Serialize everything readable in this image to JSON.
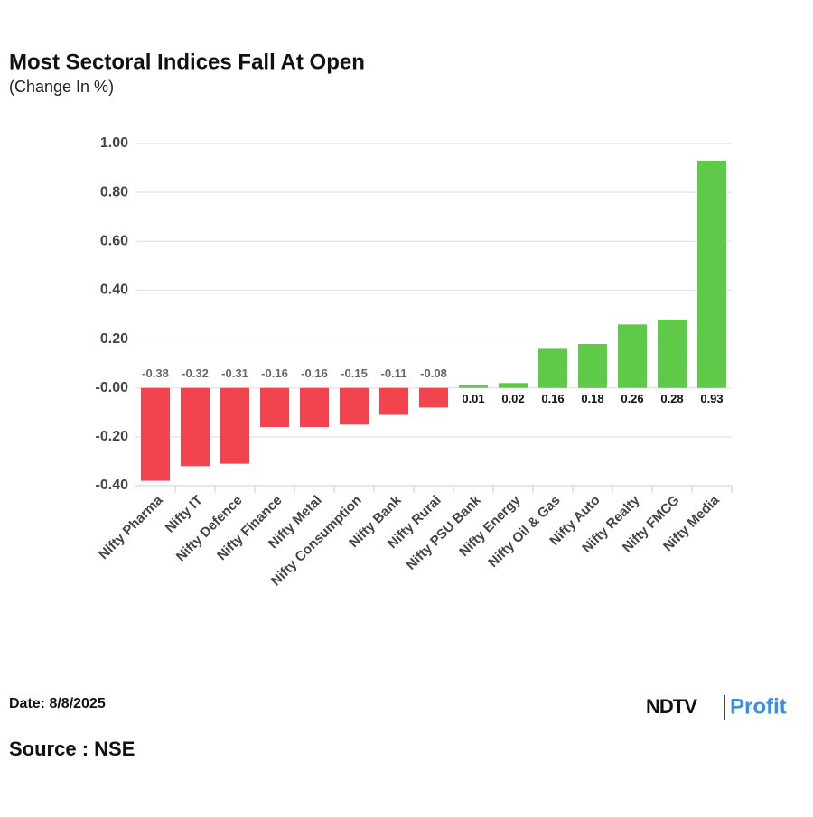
{
  "chart_data": {
    "type": "bar",
    "title": "Most Sectoral Indices Fall At Open",
    "subtitle": "(Change In %)",
    "categories": [
      "Nifty Pharma",
      "Nifty IT",
      "Nifty Defence",
      "Nifty Finance",
      "Nifty Metal",
      "Nifty Consumption",
      "Nifty Bank",
      "Nifty Rural",
      "Nifty PSU Bank",
      "Nifty Energy",
      "Nifty Oil & Gas",
      "Nifty Auto",
      "Nifty Realty",
      "Nifty FMCG",
      "Nifty Media"
    ],
    "values": [
      -0.38,
      -0.32,
      -0.31,
      -0.16,
      -0.16,
      -0.15,
      -0.11,
      -0.08,
      0.01,
      0.02,
      0.16,
      0.18,
      0.26,
      0.28,
      0.93
    ],
    "colors": {
      "negative": "#f2444f",
      "positive": "#5fca47"
    },
    "ylim": [
      -0.4,
      1.0
    ],
    "yticks": [
      {
        "value": -0.4,
        "label": "-0.40"
      },
      {
        "value": -0.2,
        "label": "-0.20"
      },
      {
        "value": 0,
        "label": "-0.00"
      },
      {
        "value": 0.2,
        "label": "0.20"
      },
      {
        "value": 0.4,
        "label": "0.40"
      },
      {
        "value": 0.6,
        "label": "0.60"
      },
      {
        "value": 0.8,
        "label": "0.80"
      },
      {
        "value": 1.0,
        "label": "1.00"
      }
    ],
    "grid": true
  },
  "footer": {
    "date": "Date: 8/8/2025",
    "source": "Source : NSE",
    "logo": {
      "brand": "NDTV",
      "product": "Profit"
    }
  }
}
